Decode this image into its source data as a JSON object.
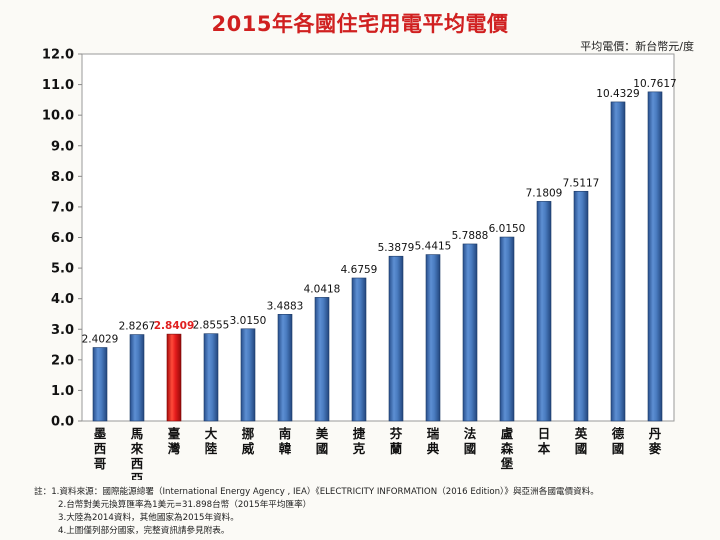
{
  "title": "2015年各國住宅用電平均電價",
  "unit_label": "平均電價：新台幣元/度",
  "notes": [
    "註：1.資料來源：國際能源總署（International  Energy Agency , IEA）《ELECTRICITY   INFORMATION（2016 Edition）》與亞洲各國電價資料。",
    "2.台幣對美元換算匯率為1美元=31.898台幣（2015年平均匯率）",
    "3.大陸為2014資料，其他國家為2015年資料。",
    "4.上圖僅列部分國家，完整資訊請參見附表。"
  ],
  "colors": {
    "bar": "#3f6fb0",
    "highlight_bar": "#e01818",
    "highlight_label": "#e02020",
    "title": "#d02020"
  },
  "chart_data": {
    "type": "bar",
    "title": "2015年各國住宅用電平均電價",
    "ylabel": "平均電價：新台幣元/度",
    "ylim": [
      0,
      12
    ],
    "yticks": [
      "0.0",
      "1.0",
      "2.0",
      "3.0",
      "4.0",
      "5.0",
      "6.0",
      "7.0",
      "8.0",
      "9.0",
      "10.0",
      "11.0",
      "12.0"
    ],
    "grid": false,
    "legend": "none",
    "categories": [
      "墨西哥",
      "馬來西亞",
      "臺灣",
      "大陸",
      "挪威",
      "南韓",
      "美國",
      "捷克",
      "芬蘭",
      "瑞典",
      "法國",
      "盧森堡",
      "日本",
      "英國",
      "德國",
      "丹麥"
    ],
    "values": [
      2.4029,
      2.8267,
      2.8409,
      2.8555,
      3.015,
      3.4883,
      4.0418,
      4.6759,
      5.3879,
      5.4415,
      5.7888,
      6.015,
      7.1809,
      7.5117,
      10.4329,
      10.7617
    ],
    "value_labels": [
      "2.4029",
      "2.8267",
      "2.8409",
      "2.8555",
      "3.0150",
      "3.4883",
      "4.0418",
      "4.6759",
      "5.3879",
      "5.4415",
      "5.7888",
      "6.0150",
      "7.1809",
      "7.5117",
      "10.4329",
      "10.7617"
    ],
    "highlight": "臺灣"
  }
}
